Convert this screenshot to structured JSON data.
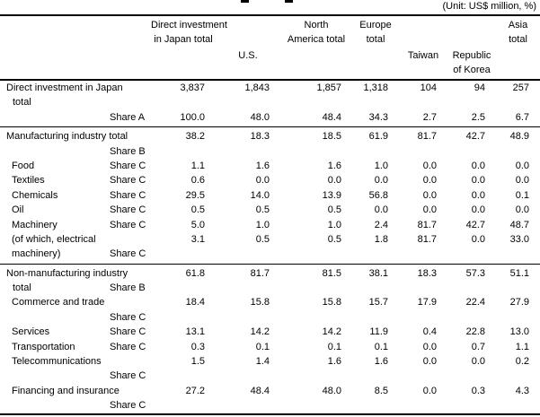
{
  "unit_note": "(Unit: US$ million, %)",
  "table": {
    "col_headers": {
      "c1": [
        "Direct investment",
        "in Japan total"
      ],
      "c2": [
        "U.S."
      ],
      "c3": [
        "North",
        "America total"
      ],
      "c4": [
        "Europe",
        "total"
      ],
      "c5": [
        "Taiwan"
      ],
      "c6": [
        "Republic",
        "of Korea"
      ],
      "c7": [
        "Asia",
        "total"
      ]
    },
    "rows": [
      {
        "name": [
          "Direct investment in Japan",
          "total"
        ],
        "share": "",
        "share_line": 0,
        "indent": 0,
        "values": [
          "3,837",
          "1,843",
          "1,857",
          "1,318",
          "104",
          "94",
          "257"
        ],
        "divider_after": false
      },
      {
        "name": [],
        "share": "Share A",
        "share_line": 1,
        "indent": 0,
        "values": [
          "100.0",
          "48.0",
          "48.4",
          "34.3",
          "2.7",
          "2.5",
          "6.7"
        ],
        "divider_after": true
      },
      {
        "name": [
          "Manufacturing industry total"
        ],
        "share": "Share B",
        "share_line": 2,
        "indent": 0,
        "values": [
          "38.2",
          "18.3",
          "18.5",
          "61.9",
          "81.7",
          "42.7",
          "48.9"
        ],
        "divider_after": false
      },
      {
        "name": [
          "Food"
        ],
        "share": "Share C",
        "share_line": 1,
        "indent": 1,
        "values": [
          "1.1",
          "1.6",
          "1.6",
          "1.0",
          "0.0",
          "0.0",
          "0.0"
        ],
        "divider_after": false
      },
      {
        "name": [
          "Textiles"
        ],
        "share": "Share C",
        "share_line": 1,
        "indent": 1,
        "values": [
          "0.6",
          "0.0",
          "0.0",
          "0.0",
          "0.0",
          "0.0",
          "0.0"
        ],
        "divider_after": false
      },
      {
        "name": [
          "Chemicals"
        ],
        "share": "Share C",
        "share_line": 1,
        "indent": 1,
        "values": [
          "29.5",
          "14.0",
          "13.9",
          "56.8",
          "0.0",
          "0.0",
          "0.1"
        ],
        "divider_after": false
      },
      {
        "name": [
          "Oil"
        ],
        "share": "Share C",
        "share_line": 1,
        "indent": 1,
        "values": [
          "0.5",
          "0.5",
          "0.5",
          "0.0",
          "0.0",
          "0.0",
          "0.0"
        ],
        "divider_after": false
      },
      {
        "name": [
          "Machinery"
        ],
        "share": "Share C",
        "share_line": 1,
        "indent": 1,
        "values": [
          "5.0",
          "1.0",
          "1.0",
          "2.4",
          "81.7",
          "42.7",
          "48.7"
        ],
        "divider_after": false
      },
      {
        "name": [
          "(of which, electrical",
          "machinery)"
        ],
        "share": "Share C",
        "share_line": 2,
        "indent": 1,
        "values": [
          "3.1",
          "0.5",
          "0.5",
          "1.8",
          "81.7",
          "0.0",
          "33.0"
        ],
        "divider_after": true
      },
      {
        "name": [
          "Non-manufacturing industry",
          "total"
        ],
        "share": "Share B",
        "share_line": 2,
        "indent": 0,
        "values": [
          "61.8",
          "81.7",
          "81.5",
          "38.1",
          "18.3",
          "57.3",
          "51.1"
        ],
        "divider_after": false
      },
      {
        "name": [
          "Commerce and trade"
        ],
        "share": "Share C",
        "share_line": 2,
        "indent": 1,
        "values": [
          "18.4",
          "15.8",
          "15.8",
          "15.7",
          "17.9",
          "22.4",
          "27.9"
        ],
        "divider_after": false
      },
      {
        "name": [
          "Services"
        ],
        "share": "Share C",
        "share_line": 1,
        "indent": 1,
        "values": [
          "13.1",
          "14.2",
          "14.2",
          "11.9",
          "0.4",
          "22.8",
          "13.0"
        ],
        "divider_after": false
      },
      {
        "name": [
          "Transportation"
        ],
        "share": "Share C",
        "share_line": 1,
        "indent": 1,
        "values": [
          "0.3",
          "0.1",
          "0.1",
          "0.1",
          "0.0",
          "0.7",
          "1.1"
        ],
        "divider_after": false
      },
      {
        "name": [
          "Telecommunications"
        ],
        "share": "Share C",
        "share_line": 2,
        "indent": 1,
        "values": [
          "1.5",
          "1.4",
          "1.6",
          "1.6",
          "0.0",
          "0.0",
          "0.2"
        ],
        "divider_after": false
      },
      {
        "name": [
          "Financing and insurance"
        ],
        "share": "Share C",
        "share_line": 2,
        "indent": 1,
        "values": [
          "27.2",
          "48.4",
          "48.0",
          "8.5",
          "0.0",
          "0.3",
          "4.3"
        ],
        "divider_after": false
      }
    ]
  }
}
